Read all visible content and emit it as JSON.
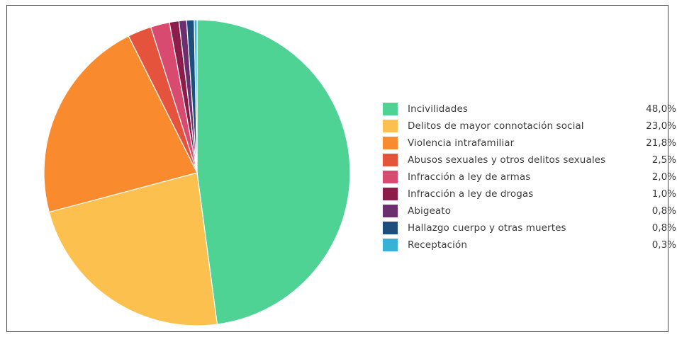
{
  "chart_data": {
    "type": "pie",
    "title": "",
    "categories": [
      "Incivilidades",
      "Delitos de mayor connotación social",
      "Violencia intrafamiliar",
      "Abusos sexuales y otros delitos sexuales",
      "Infracción a ley de armas",
      "Infracción a ley de drogas",
      "Abigeato",
      "Hallazgo cuerpo y otras muertes",
      "Receptación"
    ],
    "values": [
      48.0,
      23.0,
      21.8,
      2.5,
      2.0,
      1.0,
      0.8,
      0.8,
      0.3
    ],
    "value_labels": [
      "48,0%",
      "23,0%",
      "21,8%",
      "2,5%",
      "2,0%",
      "1,0%",
      "0,8%",
      "0,8%",
      "0,3%"
    ],
    "colors": [
      "#4fd394",
      "#fcc04e",
      "#f98a2d",
      "#e5533c",
      "#d94a70",
      "#8c1c4a",
      "#6b2f6f",
      "#1e4e7c",
      "#36b2d6"
    ],
    "legend_position": "right",
    "start_angle": "12 o'clock",
    "direction": "clockwise"
  }
}
